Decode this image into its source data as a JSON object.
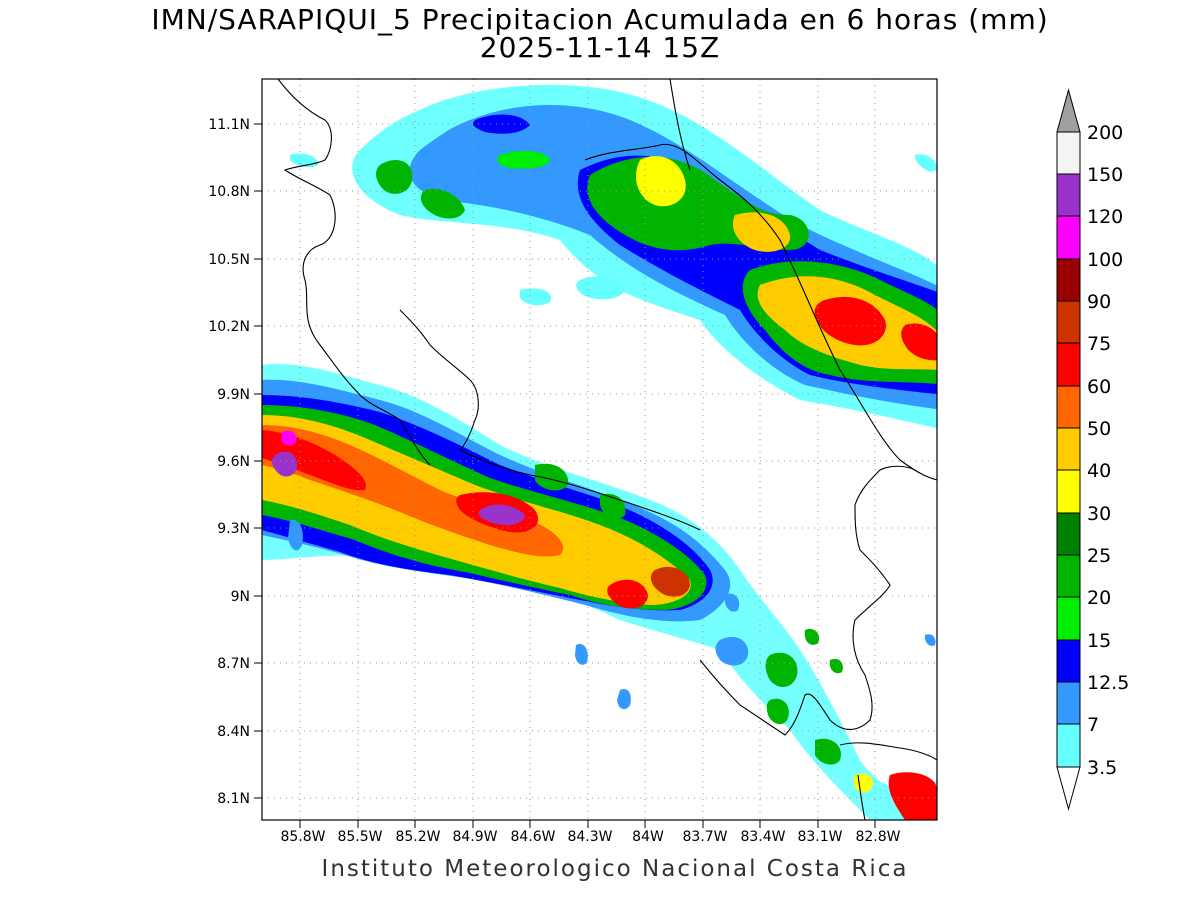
{
  "title": {
    "line1": "IMN/SARAPIQUI_5 Precipitacion Acumulada en 6 horas (mm)",
    "line2": "2025-11-14 15Z"
  },
  "credit": "Instituto Meteorologico Nacional Costa Rica",
  "map": {
    "lat_labels": [
      "11.1N",
      "10.8N",
      "10.5N",
      "10.2N",
      "9.9N",
      "9.6N",
      "9.3N",
      "9N",
      "8.7N",
      "8.4N",
      "8.1N"
    ],
    "lon_labels": [
      "85.8W",
      "85.5W",
      "85.2W",
      "84.9W",
      "84.6W",
      "84.3W",
      "84W",
      "83.7W",
      "83.4W",
      "83.1W",
      "82.8W"
    ],
    "gridlines": "dotted"
  },
  "colorbar": {
    "levels": [
      "200",
      "150",
      "120",
      "100",
      "90",
      "75",
      "60",
      "50",
      "40",
      "30",
      "25",
      "20",
      "15",
      "12.5",
      "7",
      "3.5"
    ],
    "colors": [
      "#f4f4f4",
      "#9933cc",
      "#ff00ff",
      "#990000",
      "#cc3300",
      "#ff0000",
      "#ff6600",
      "#ffcc00",
      "#ffff00",
      "#008000",
      "#00b400",
      "#00ee00",
      "#0000ff",
      "#3399ff",
      "#66ffff"
    ],
    "over_color": "#a0a0a0",
    "under_color": "#ffffff"
  },
  "precip_colors": {
    "c3": "#66ffff",
    "c7": "#3399ff",
    "c12": "#0000ff",
    "c15": "#00ee00",
    "c20": "#00b400",
    "c25": "#008000",
    "c30": "#ffff00",
    "c40": "#ffcc00",
    "c50": "#ff6600",
    "c60": "#ff0000",
    "c75": "#cc3300",
    "c120": "#ff00ff",
    "c150": "#9933cc"
  }
}
